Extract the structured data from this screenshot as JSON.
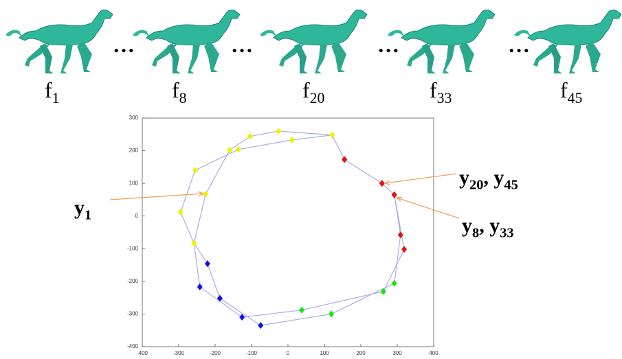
{
  "frames": [
    {
      "letter": "f",
      "index": "1"
    },
    {
      "letter": "f",
      "index": "8"
    },
    {
      "letter": "f",
      "index": "20"
    },
    {
      "letter": "f",
      "index": "33"
    },
    {
      "letter": "f",
      "index": "45"
    }
  ],
  "separator": "…",
  "chart_data": {
    "type": "line",
    "xlim": [
      -400,
      400
    ],
    "ylim": [
      -400,
      300
    ],
    "xticks": [
      -400,
      -300,
      -200,
      -100,
      0,
      100,
      200,
      300,
      400
    ],
    "yticks": [
      -400,
      -300,
      -200,
      -100,
      0,
      100,
      200,
      300
    ],
    "line_color": "#a9acec",
    "series": [
      {
        "x": [
          -226,
          -160,
          -104,
          -26,
          121,
          155,
          258,
          292,
          309,
          292,
          119,
          -75,
          -187,
          -221,
          -258,
          -295,
          -255,
          -136,
          11,
          121,
          155,
          258,
          292,
          319,
          262,
          38,
          -126,
          -242,
          -258,
          -226
        ],
        "values": [
          67,
          202,
          244,
          260,
          248,
          173,
          100,
          65,
          -58,
          -206,
          -300,
          -335,
          -252,
          -146,
          -83,
          12,
          140,
          204,
          233,
          248,
          173,
          100,
          65,
          -102,
          -231,
          -288,
          -310,
          -217,
          -83,
          67
        ],
        "colors": [
          "#f2f200",
          "#f2f200",
          "#f2f200",
          "#f2f200",
          "#f2f200",
          "#e81010",
          "#e81010",
          "#e81010",
          "#e81010",
          "#10e810",
          "#10e810",
          "#1010e8",
          "#1010e8",
          "#1010e8",
          "#f2f200",
          "#f2f200",
          "#f2f200",
          "#f2f200",
          "#f2f200",
          "#f2f200",
          "#e81010",
          "#e81010",
          "#e81010",
          "#e81010",
          "#10e810",
          "#10e810",
          "#1010e8",
          "#1010e8",
          "#f2f200",
          "#f2f200"
        ]
      }
    ],
    "annotations": [
      {
        "labels": [
          {
            "letter": "y",
            "index": "1"
          }
        ]
      },
      {
        "labels": [
          {
            "letter": "y",
            "index": "20"
          },
          {
            "letter": "y",
            "index": "45"
          }
        ],
        "separator": ", "
      },
      {
        "labels": [
          {
            "letter": "y",
            "index": "8"
          },
          {
            "letter": "y",
            "index": "33"
          }
        ],
        "separator": ", "
      }
    ]
  }
}
